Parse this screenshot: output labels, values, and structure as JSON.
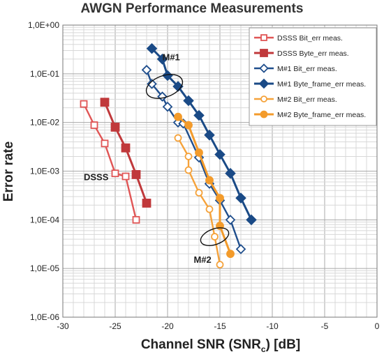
{
  "chart_data": {
    "type": "line",
    "title": "AWGN Performance Measurements",
    "xlabel": "Channel SNR (SNRc) [dB]",
    "xlabel_main": "Channel SNR (SNR",
    "xlabel_sub": "c",
    "xlabel_end": ") [dB]",
    "ylabel": "Error rate",
    "xlim": [
      -30,
      0
    ],
    "ylim": [
      1e-06,
      1
    ],
    "yscale": "log",
    "grid": true,
    "legend_position": "top-right",
    "x_ticks": [
      -30,
      -25,
      -20,
      -15,
      -10,
      -5,
      0
    ],
    "x_tick_labels": [
      "-30",
      "-25",
      "-20",
      "-15",
      "-10",
      "-5",
      "0"
    ],
    "y_ticks": [
      1,
      0.1,
      0.01,
      0.001,
      0.0001,
      1e-05,
      1e-06
    ],
    "y_tick_labels": [
      "1,0E+00",
      "1,0E-01",
      "1,0E-02",
      "1,0E-03",
      "1,0E-04",
      "1,0E-05",
      "1,0E-06"
    ],
    "series": [
      {
        "name": "DSSS Bit_err meas.",
        "color": "#e05555",
        "marker": "square-open",
        "points": [
          [
            -28,
            0.024
          ],
          [
            -27,
            0.0088
          ],
          [
            -26,
            0.0037
          ],
          [
            -25,
            0.0009
          ],
          [
            -24,
            0.00078
          ],
          [
            -23,
            0.0001
          ]
        ]
      },
      {
        "name": "DSSS Byte_err meas.",
        "color": "#c0393b",
        "marker": "square-filled",
        "points": [
          [
            -26,
            0.026
          ],
          [
            -25,
            0.008
          ],
          [
            -24,
            0.003
          ],
          [
            -23,
            0.00085
          ],
          [
            -22,
            0.00022
          ]
        ]
      },
      {
        "name": "M#1 Bit_err meas.",
        "color": "#1f4e8c",
        "marker": "diamond-open",
        "points": [
          [
            -22,
            0.12
          ],
          [
            -21.5,
            0.062
          ],
          [
            -20.5,
            0.034
          ],
          [
            -20,
            0.021
          ],
          [
            -19,
            0.01
          ],
          [
            -18.5,
            0.0095
          ],
          [
            -17,
            0.0019
          ],
          [
            -16,
            0.00055
          ],
          [
            -15,
            0.00025
          ],
          [
            -14,
            0.0001
          ],
          [
            -13,
            2.5e-05
          ]
        ]
      },
      {
        "name": "M#1 Byte_frame_err meas.",
        "color": "#1a4a86",
        "marker": "diamond-filled",
        "points": [
          [
            -21.5,
            0.33
          ],
          [
            -20.5,
            0.2
          ],
          [
            -20,
            0.092
          ],
          [
            -19,
            0.055
          ],
          [
            -18,
            0.028
          ],
          [
            -17,
            0.014
          ],
          [
            -16,
            0.0055
          ],
          [
            -15,
            0.0022
          ],
          [
            -14,
            0.0009
          ],
          [
            -13,
            0.00028
          ],
          [
            -12,
            0.0001
          ]
        ]
      },
      {
        "name": "M#2 Bit_err meas.",
        "color": "#f5a23a",
        "marker": "circle-open",
        "points": [
          [
            -19,
            0.0048
          ],
          [
            -18,
            0.002
          ],
          [
            -18,
            0.00105
          ],
          [
            -17,
            0.00036
          ],
          [
            -16,
            0.000165
          ],
          [
            -15.5,
            4.5e-05
          ],
          [
            -15,
            1.2e-05
          ]
        ]
      },
      {
        "name": "M#2 Byte_frame_err meas.",
        "color": "#f39b2b",
        "marker": "circle-filled",
        "points": [
          [
            -19,
            0.013
          ],
          [
            -18,
            0.0088
          ],
          [
            -17,
            0.0024
          ],
          [
            -16,
            0.00065
          ],
          [
            -15,
            0.00028
          ],
          [
            -15,
            7.5e-05
          ],
          [
            -14,
            2e-05
          ]
        ]
      }
    ],
    "annotations": [
      {
        "text": "M#1",
        "x": -20.5,
        "y": 0.19
      },
      {
        "text": "DSSS",
        "x": -28,
        "y": 0.00065
      },
      {
        "text": "M#2",
        "x": -17.5,
        "y": 1.3e-05
      }
    ],
    "ellipses": [
      {
        "cx": -20.3,
        "cy": 0.055,
        "rx_db": 1.8,
        "ry_decades": 0.22
      },
      {
        "cx": -15.5,
        "cy": 4.5e-05,
        "rx_db": 1.4,
        "ry_decades": 0.16
      }
    ]
  }
}
